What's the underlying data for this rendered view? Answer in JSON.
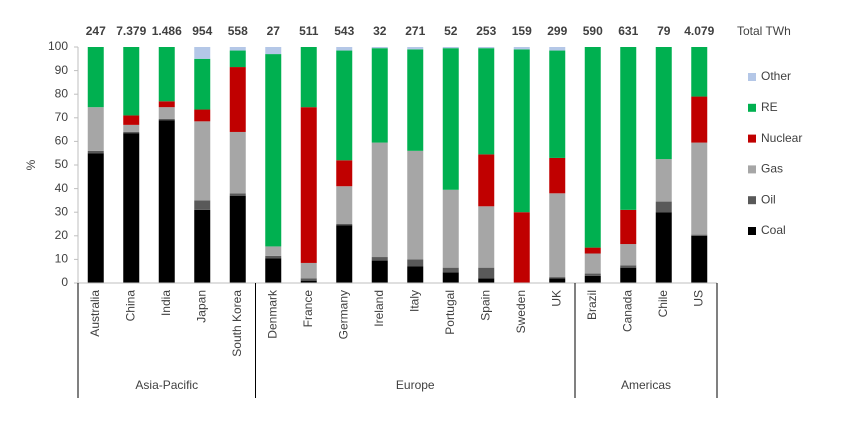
{
  "chart_data": {
    "type": "stacked_bar_100",
    "y_axis_label": "%",
    "totals_title": "Total TWh",
    "categories": [
      "Australia",
      "China",
      "India",
      "Japan",
      "South Korea",
      "Denmark",
      "France",
      "Germany",
      "Ireland",
      "Italy",
      "Portugal",
      "Spain",
      "Sweden",
      "UK",
      "Brazil",
      "Canada",
      "Chile",
      "US"
    ],
    "groups": [
      {
        "label": "Asia-Pacific",
        "count": 5
      },
      {
        "label": "Europe",
        "count": 9
      },
      {
        "label": "Americas",
        "count": 4
      }
    ],
    "totals": [
      247,
      7379,
      1486,
      954,
      558,
      27,
      511,
      543,
      32,
      271,
      52,
      253,
      159,
      299,
      590,
      631,
      79,
      4079
    ],
    "total_labels": [
      "247",
      "7.379",
      "1.486",
      "954",
      "558",
      "27",
      "511",
      "543",
      "32",
      "271",
      "52",
      "253",
      "159",
      "299",
      "590",
      "631",
      "79",
      "4.079"
    ],
    "series": [
      {
        "name": "Coal",
        "color": "#000000",
        "values": [
          55,
          63.5,
          69,
          31,
          37,
          10.5,
          1,
          24.5,
          9.5,
          7,
          4.5,
          2,
          0,
          2,
          3,
          6.5,
          30,
          20
        ]
      },
      {
        "name": "Oil",
        "color": "#595959",
        "values": [
          1,
          0.5,
          0.5,
          4,
          1,
          1,
          1,
          0.5,
          1.5,
          3,
          2,
          4.5,
          0,
          0.5,
          1,
          1,
          4.5,
          0.5
        ]
      },
      {
        "name": "Gas",
        "color": "#a6a6a6",
        "values": [
          18.5,
          3,
          5,
          33.5,
          26,
          4,
          6.5,
          16,
          48.5,
          46,
          33,
          26,
          0,
          35.5,
          8.5,
          9,
          18,
          39
        ]
      },
      {
        "name": "Nuclear",
        "color": "#c00000",
        "values": [
          0,
          4,
          2.5,
          5,
          27.5,
          0,
          66,
          11,
          0,
          0,
          0,
          22,
          30,
          15,
          2.5,
          14.5,
          0,
          19.5
        ]
      },
      {
        "name": "RE",
        "color": "#00b050",
        "values": [
          25.5,
          29,
          23,
          21.5,
          7,
          81.5,
          25.5,
          46.5,
          40,
          43,
          60,
          45,
          69,
          45.5,
          85,
          69,
          47.5,
          21
        ]
      },
      {
        "name": "Other",
        "color": "#b4c7e7",
        "values": [
          0,
          0,
          0,
          5,
          1.5,
          3,
          0,
          1.5,
          0.5,
          1,
          0.5,
          0.5,
          1,
          1.5,
          0,
          0,
          0,
          0
        ]
      }
    ],
    "ylim": [
      0,
      100
    ],
    "yticks": [
      0,
      10,
      20,
      30,
      40,
      50,
      60,
      70,
      80,
      90,
      100
    ],
    "grid": false,
    "legend": "right"
  }
}
